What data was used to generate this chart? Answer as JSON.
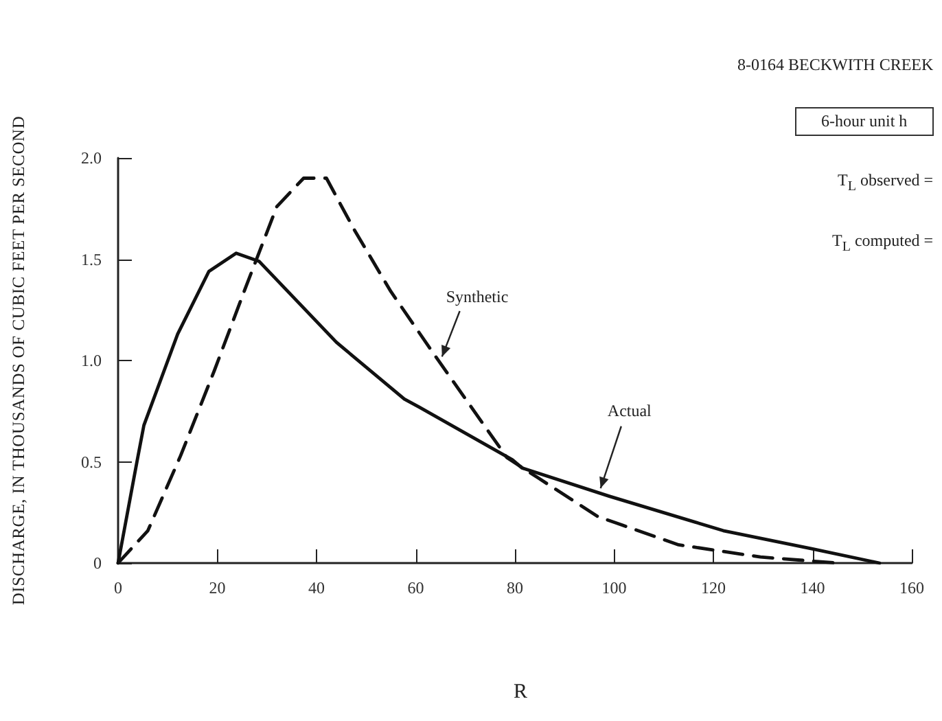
{
  "chart_data": {
    "type": "line",
    "xlabel": "R",
    "ylabel": "DISCHARGE, IN THOUSANDS OF CUBIC FEET PER SECOND",
    "xlim": [
      0,
      160
    ],
    "xticks": [
      0,
      20,
      40,
      60,
      80,
      100,
      120,
      140,
      160
    ],
    "ylim": [
      0,
      2
    ],
    "yticks": [
      0,
      {
        "value": 0.5,
        "label": "0.5"
      },
      {
        "value": 1,
        "label": "1.0"
      },
      {
        "value": 1.5,
        "label": "1.5"
      },
      {
        "value": 2,
        "label": "2.0"
      }
    ],
    "grid": false,
    "marker": "none",
    "series": [
      {
        "color": "#111111",
        "line_style": "solid",
        "x": [
          0,
          3.8,
          5.2,
          12,
          18.3,
          23.8,
          28.4,
          44,
          57.7,
          60.7,
          79.5,
          81.4,
          99,
          122,
          140,
          153.5
        ],
        "values": [
          0,
          0.5,
          0.68,
          1.13,
          1.44,
          1.53,
          1.49,
          1.09,
          0.81,
          0.77,
          0.51,
          0.47,
          0.33,
          0.16,
          0.07,
          0
        ]
      },
      {
        "color": "#111111",
        "line_style": "dashed",
        "x": [
          0,
          6,
          12.6,
          19.4,
          25.7,
          32,
          37.4,
          42,
          47.5,
          55,
          64,
          78.4,
          84.7,
          96.7,
          113,
          129.5,
          145
        ],
        "values": [
          0,
          0.16,
          0.53,
          0.95,
          1.36,
          1.76,
          1.9,
          1.9,
          1.65,
          1.34,
          1.02,
          0.52,
          0.42,
          0.23,
          0.09,
          0.03,
          0
        ]
      }
    ],
    "annotations": [
      "8-0164 BECKWITH CREEK",
      "6-hour unit h",
      "T$_{L}$ observed =",
      "T$_{L}$ computed =",
      {
        "text": "Synthetic",
        "x": 65,
        "y": 1.0
      },
      {
        "text": "Actual",
        "x": 97,
        "y": 0.35
      }
    ]
  }
}
